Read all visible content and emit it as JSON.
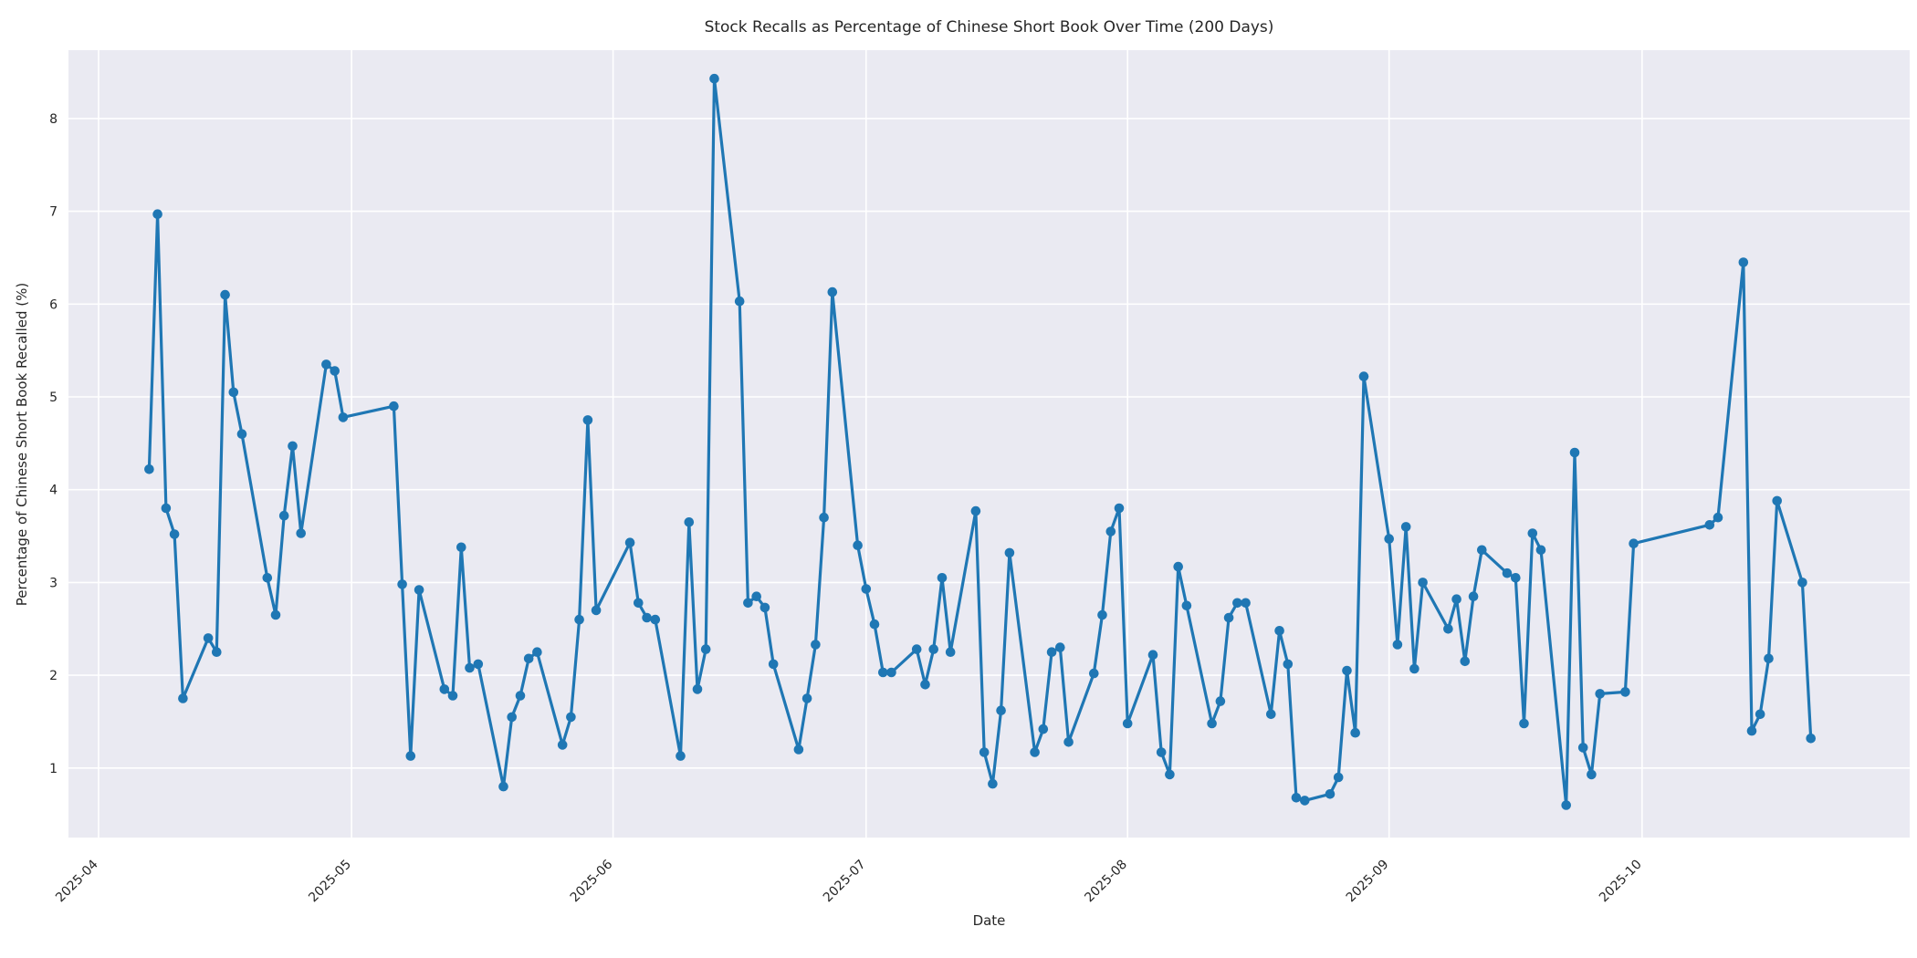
{
  "chart_data": {
    "type": "line",
    "title": "Stock Recalls as Percentage of Chinese Short Book Over Time (200 Days)",
    "xlabel": "Date",
    "ylabel": "Percentage of Chinese Short Book Recalled (%)",
    "legend": "none",
    "grid": true,
    "ylim": [
      0.25,
      8.74
    ],
    "y_ticks": [
      1,
      2,
      3,
      4,
      5,
      6,
      7,
      8
    ],
    "x_ticks": [
      {
        "label": "2025-04",
        "day_offset": -6
      },
      {
        "label": "2025-05",
        "day_offset": 24
      },
      {
        "label": "2025-06",
        "day_offset": 55
      },
      {
        "label": "2025-07",
        "day_offset": 85
      },
      {
        "label": "2025-08",
        "day_offset": 116
      },
      {
        "label": "2025-09",
        "day_offset": 147
      },
      {
        "label": "2025-10",
        "day_offset": 177
      }
    ],
    "x_start_date": "2025-04-07",
    "x_end_date": "2025-10-21",
    "n_points": 132,
    "x_day_offsets": [
      0,
      1,
      2,
      3,
      4,
      7,
      8,
      9,
      10,
      11,
      14,
      15,
      16,
      17,
      18,
      21,
      22,
      23,
      29,
      30,
      31,
      32,
      35,
      36,
      37,
      38,
      39,
      42,
      43,
      44,
      45,
      46,
      49,
      50,
      51,
      52,
      53,
      57,
      58,
      59,
      60,
      63,
      64,
      65,
      66,
      67,
      70,
      71,
      72,
      73,
      74,
      77,
      78,
      79,
      80,
      81,
      84,
      85,
      86,
      87,
      88,
      91,
      92,
      93,
      94,
      95,
      98,
      99,
      100,
      101,
      102,
      105,
      106,
      107,
      108,
      109,
      112,
      113,
      114,
      115,
      116,
      119,
      120,
      121,
      122,
      123,
      126,
      127,
      128,
      129,
      130,
      133,
      134,
      135,
      136,
      137,
      140,
      141,
      142,
      143,
      144,
      147,
      148,
      149,
      150,
      151,
      154,
      155,
      156,
      157,
      158,
      161,
      162,
      163,
      164,
      165,
      168,
      169,
      170,
      171,
      172,
      175,
      176,
      185,
      186,
      189,
      190,
      191,
      192,
      193,
      196,
      197
    ],
    "series": [
      {
        "name": "recall_pct",
        "values": [
          4.22,
          6.97,
          3.8,
          3.52,
          1.75,
          2.4,
          2.25,
          6.1,
          5.05,
          4.6,
          3.05,
          2.65,
          3.72,
          4.47,
          3.53,
          5.35,
          5.28,
          4.78,
          4.9,
          2.98,
          1.13,
          2.92,
          1.85,
          1.78,
          3.38,
          2.08,
          2.12,
          0.8,
          1.55,
          1.78,
          2.18,
          2.25,
          1.25,
          1.55,
          2.6,
          4.75,
          2.7,
          3.43,
          2.78,
          2.62,
          2.6,
          1.13,
          3.65,
          1.85,
          2.28,
          8.43,
          6.03,
          2.78,
          2.85,
          2.73,
          2.12,
          1.2,
          1.75,
          2.33,
          3.7,
          6.13,
          3.4,
          2.93,
          2.55,
          2.03,
          2.03,
          2.28,
          1.9,
          2.28,
          3.05,
          2.25,
          3.77,
          1.17,
          0.83,
          1.62,
          3.32,
          1.17,
          1.42,
          2.25,
          2.3,
          1.28,
          2.02,
          2.65,
          3.55,
          3.8,
          1.48,
          2.22,
          1.17,
          0.93,
          3.17,
          2.75,
          1.48,
          1.72,
          2.62,
          2.78,
          2.78,
          1.58,
          2.48,
          2.12,
          0.68,
          0.65,
          0.72,
          0.9,
          2.05,
          1.38,
          5.22,
          3.47,
          2.33,
          3.6,
          2.07,
          3.0,
          2.5,
          2.82,
          2.15,
          2.85,
          3.35,
          3.1,
          3.05,
          1.48,
          3.53,
          3.35,
          0.6,
          4.4,
          1.22,
          0.93,
          1.8,
          1.82,
          3.42,
          3.62,
          3.7,
          6.45,
          1.4,
          1.58,
          2.18,
          3.88,
          3.0,
          1.32
        ]
      }
    ],
    "style": {
      "line_color": "#1f77b4",
      "marker": "circle",
      "plot_background": "#eaeaf2",
      "grid_color": "#ffffff",
      "figure_background": "#ffffff",
      "text_color": "#262626"
    }
  }
}
